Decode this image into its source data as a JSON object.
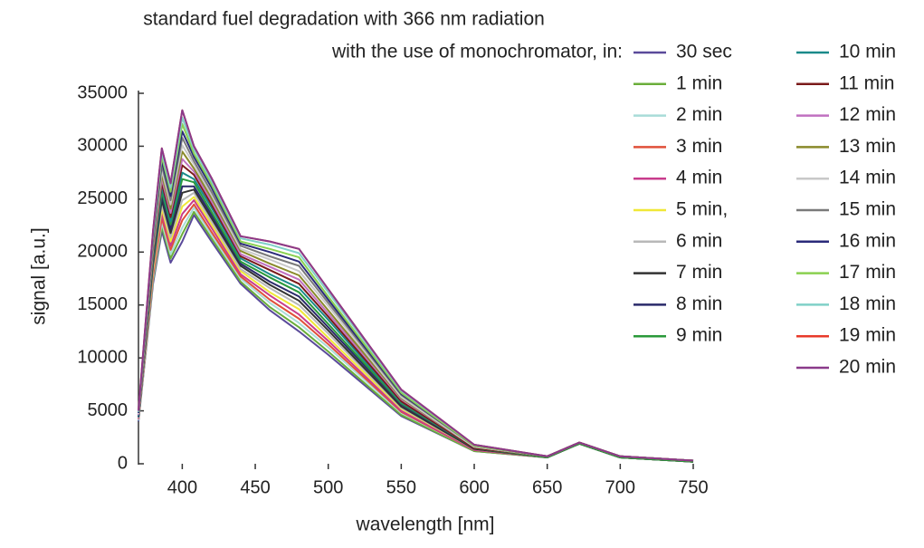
{
  "chart_data": {
    "type": "line",
    "title": "standard fuel degradation with 366 nm radiation",
    "subtitle": "with the use of monochromator,  in:",
    "x_label": "wavelength [nm]",
    "y_label": "signal [a.u.]",
    "xlim": [
      370,
      750
    ],
    "ylim": [
      0,
      35000
    ],
    "xticks": [
      400,
      450,
      500,
      550,
      600,
      650,
      700,
      750
    ],
    "yticks": [
      0,
      5000,
      10000,
      15000,
      20000,
      25000,
      30000,
      35000
    ],
    "x": [
      370,
      380,
      386,
      392,
      400,
      408,
      420,
      440,
      460,
      480,
      500,
      550,
      600,
      650,
      672,
      700,
      750
    ],
    "series": [
      {
        "name": "30 sec",
        "color": "#5a4a9a",
        "values": [
          4000,
          17000,
          22000,
          19000,
          21000,
          23500,
          21000,
          17000,
          14500,
          12500,
          10300,
          4500,
          1200,
          600,
          1900,
          600,
          200
        ]
      },
      {
        "name": "1 min",
        "color": "#6aae3a",
        "values": [
          4100,
          17300,
          22400,
          19400,
          21700,
          23800,
          21300,
          17200,
          14800,
          12900,
          10600,
          4600,
          1200,
          600,
          1900,
          600,
          200
        ]
      },
      {
        "name": "2 min",
        "color": "#a8dcd8",
        "values": [
          4100,
          17500,
          22800,
          19800,
          22300,
          24200,
          21600,
          17500,
          15200,
          13300,
          11000,
          4800,
          1300,
          600,
          1900,
          600,
          200
        ]
      },
      {
        "name": "3 min",
        "color": "#e0503a",
        "values": [
          4200,
          17800,
          23200,
          20200,
          23000,
          24500,
          21900,
          17700,
          15500,
          13700,
          11300,
          4900,
          1300,
          600,
          1900,
          600,
          200
        ]
      },
      {
        "name": "4 min",
        "color": "#c83c8c",
        "values": [
          4200,
          18100,
          23600,
          20600,
          23600,
          24900,
          22300,
          17900,
          15900,
          14100,
          11600,
          5000,
          1300,
          600,
          1900,
          600,
          200
        ]
      },
      {
        "name": "5 min,",
        "color": "#f0e838",
        "values": [
          4300,
          18300,
          24100,
          21000,
          24300,
          25200,
          22600,
          18200,
          16200,
          14600,
          11900,
          5200,
          1400,
          600,
          1900,
          600,
          200
        ]
      },
      {
        "name": "6 min",
        "color": "#b8b8b8",
        "values": [
          4300,
          18600,
          24500,
          21400,
          24900,
          25600,
          22900,
          18400,
          16600,
          15000,
          12300,
          5300,
          1400,
          600,
          1900,
          600,
          200
        ]
      },
      {
        "name": "7 min",
        "color": "#333333",
        "values": [
          4400,
          18800,
          24900,
          21800,
          25600,
          25900,
          23200,
          18700,
          16900,
          15400,
          12600,
          5400,
          1400,
          600,
          1900,
          600,
          200
        ]
      },
      {
        "name": "8 min",
        "color": "#2a2a6a",
        "values": [
          4400,
          19100,
          25300,
          22200,
          26200,
          26200,
          23500,
          18900,
          17200,
          15800,
          12900,
          5600,
          1500,
          600,
          1900,
          600,
          200
        ]
      },
      {
        "name": "9 min",
        "color": "#2a9a3a",
        "values": [
          4500,
          19400,
          25700,
          22600,
          26900,
          26600,
          23800,
          19100,
          17600,
          16200,
          13200,
          5700,
          1500,
          600,
          1900,
          600,
          200
        ]
      },
      {
        "name": "10 min",
        "color": "#1a8a8a",
        "values": [
          4500,
          19600,
          26100,
          22900,
          27500,
          26900,
          24200,
          19400,
          17900,
          16600,
          13600,
          5800,
          1500,
          700,
          2000,
          700,
          300
        ]
      },
      {
        "name": "11 min",
        "color": "#7a1a1a",
        "values": [
          4600,
          19900,
          26500,
          23300,
          28200,
          27300,
          24500,
          19600,
          18300,
          17000,
          13900,
          5900,
          1500,
          700,
          2000,
          700,
          300
        ]
      },
      {
        "name": "12 min",
        "color": "#c070c0",
        "values": [
          4600,
          20200,
          26900,
          23700,
          28800,
          27600,
          24800,
          19800,
          18600,
          17400,
          14200,
          6100,
          1600,
          700,
          2000,
          700,
          300
        ]
      },
      {
        "name": "13 min",
        "color": "#8a8a2a",
        "values": [
          4700,
          20400,
          27300,
          24100,
          29500,
          27900,
          25100,
          20100,
          18900,
          17800,
          14500,
          6200,
          1600,
          700,
          2000,
          700,
          300
        ]
      },
      {
        "name": "14 min",
        "color": "#c8c8c8",
        "values": [
          4700,
          20700,
          27700,
          24500,
          30100,
          28300,
          25400,
          20300,
          19300,
          18200,
          14900,
          6300,
          1600,
          700,
          2000,
          700,
          300
        ]
      },
      {
        "name": "15 min",
        "color": "#7a7a7a",
        "values": [
          4800,
          20900,
          28200,
          24900,
          30800,
          28600,
          25700,
          20600,
          19600,
          18700,
          15200,
          6500,
          1700,
          700,
          2000,
          700,
          300
        ]
      },
      {
        "name": "16 min",
        "color": "#2a2a7a",
        "values": [
          4800,
          21200,
          28600,
          25300,
          31400,
          29000,
          26100,
          20800,
          20000,
          19100,
          15500,
          6600,
          1700,
          700,
          2000,
          700,
          300
        ]
      },
      {
        "name": "17 min",
        "color": "#8ad050",
        "values": [
          4900,
          21500,
          29000,
          25700,
          32100,
          29300,
          26400,
          21000,
          20300,
          19500,
          15800,
          6700,
          1700,
          700,
          2000,
          700,
          300
        ]
      },
      {
        "name": "18 min",
        "color": "#80d0c8",
        "values": [
          4900,
          21700,
          29400,
          26100,
          32700,
          29700,
          26700,
          21300,
          20700,
          19900,
          16200,
          6900,
          1800,
          700,
          2000,
          700,
          300
        ]
      },
      {
        "name": "19 min",
        "color": "#e83a2a",
        "values": [
          5000,
          22000,
          29800,
          26500,
          33400,
          30000,
          27000,
          21500,
          21000,
          20300,
          16500,
          7000,
          1800,
          700,
          2000,
          700,
          300
        ]
      },
      {
        "name": "20 min",
        "color": "#8a3a8a",
        "values": [
          5000,
          22000,
          29800,
          26500,
          33400,
          30000,
          27000,
          21500,
          21000,
          20300,
          16500,
          7000,
          1800,
          700,
          2000,
          700,
          300
        ]
      }
    ]
  }
}
